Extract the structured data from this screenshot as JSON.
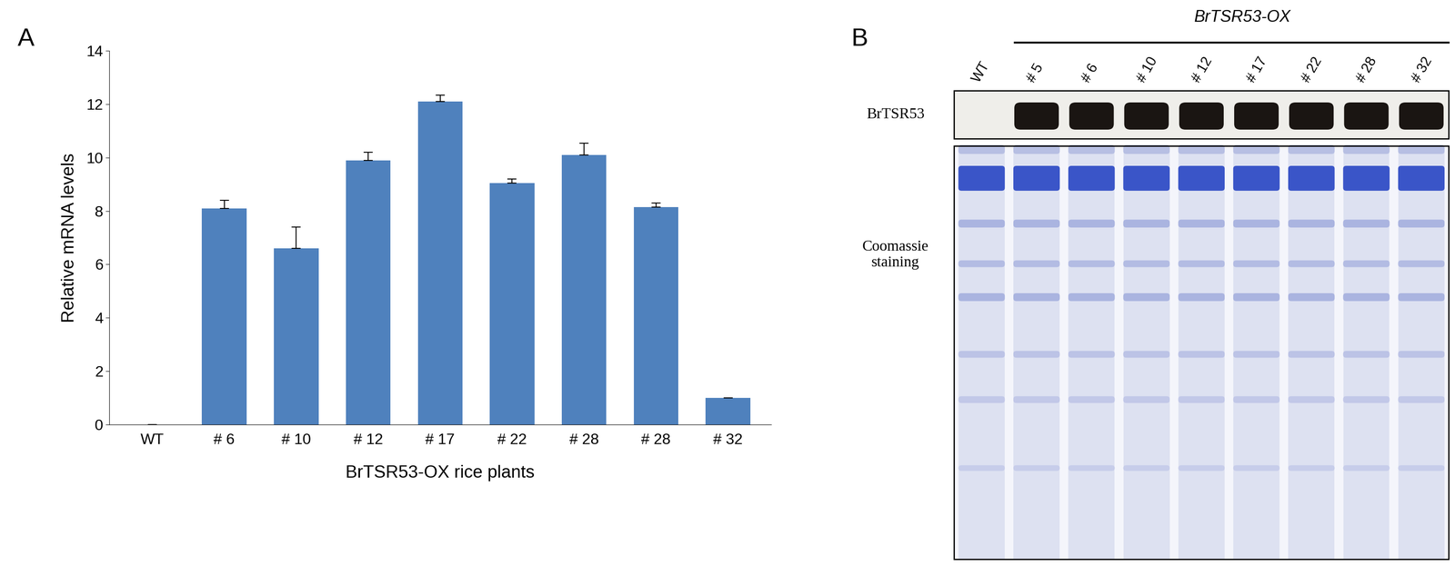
{
  "chart_data": {
    "type": "bar",
    "panel": "A",
    "categories": [
      "WT",
      "# 6",
      "# 10",
      "# 12",
      "# 17",
      "# 22",
      "# 28",
      "# 28",
      "# 32"
    ],
    "values": [
      0,
      8.1,
      6.6,
      9.9,
      12.1,
      9.05,
      10.1,
      8.15,
      1.0
    ],
    "errors": [
      0,
      0.3,
      0.8,
      0.3,
      0.25,
      0.15,
      0.45,
      0.15,
      0
    ],
    "color": "#4f81bd",
    "x_label": "BrTSR53-OX rice plants",
    "y_label": "Relative mRNA levels",
    "ylim": [
      0,
      14
    ],
    "yticks": [
      0,
      2,
      4,
      6,
      8,
      10,
      12,
      14
    ],
    "grid": false
  },
  "blot": {
    "panel": "B",
    "header": "BrTSR53-OX",
    "lanes": [
      "WT",
      "# 5",
      "# 6",
      "# 10",
      "# 12",
      "# 17",
      "# 22",
      "# 28",
      "# 32"
    ],
    "rows": [
      "BrTSR53",
      "Coomassie\nstaining"
    ]
  }
}
